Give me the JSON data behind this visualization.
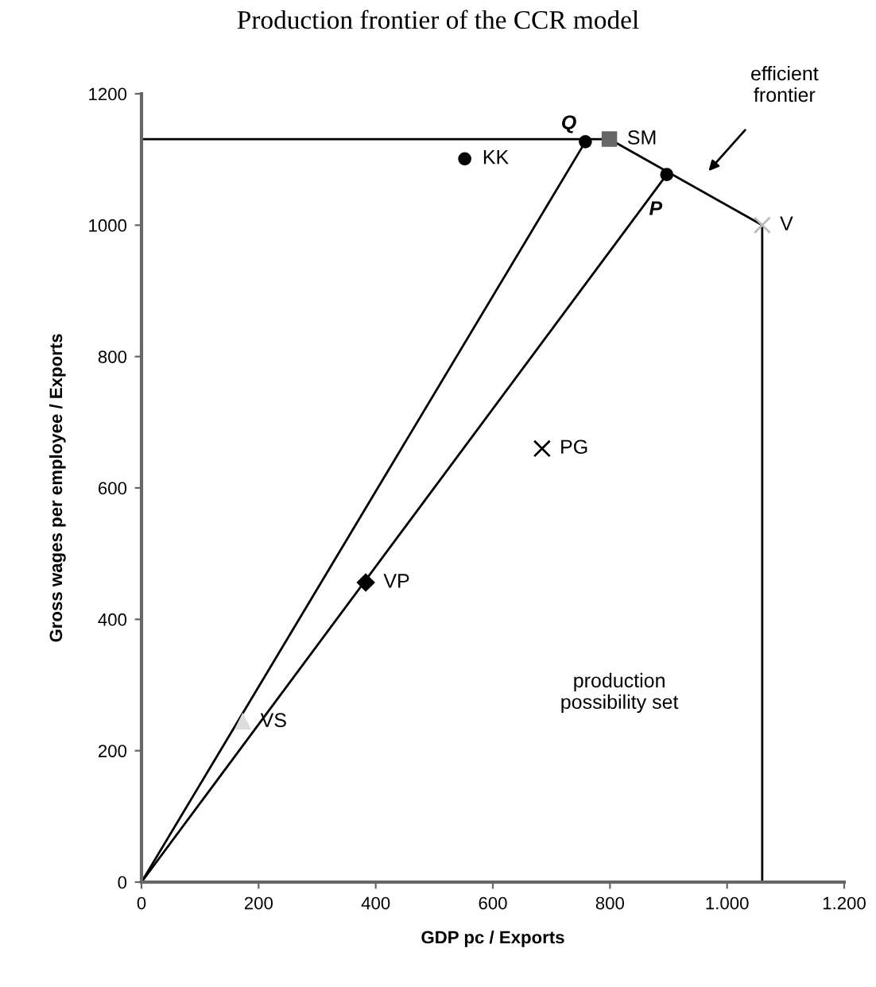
{
  "chart_data": {
    "type": "scatter",
    "title": "Production frontier of the CCR model",
    "xlabel": "GDP pc / Exports",
    "ylabel": "Gross wages per employee / Exports",
    "xlim": [
      0,
      1200
    ],
    "ylim": [
      0,
      1200
    ],
    "xticks": [
      0,
      200,
      400,
      600,
      800,
      {
        "value": 1000,
        "label": "1.000"
      },
      {
        "value": 1200,
        "label": "1.200"
      }
    ],
    "yticks": [
      0,
      200,
      400,
      600,
      800,
      1000,
      1200
    ],
    "grid": false,
    "legend": false,
    "series": [
      {
        "type": "line",
        "color": "#000000",
        "marker": "none",
        "x": [
          0,
          799,
          1060,
          1060
        ],
        "values": [
          1131,
          1131,
          1000,
          0
        ]
      },
      {
        "type": "line",
        "color": "#000000",
        "marker": "none",
        "x": [
          0,
          758
        ],
        "values": [
          0,
          1127
        ]
      },
      {
        "type": "line",
        "color": "#000000",
        "marker": "none",
        "x": [
          0,
          897
        ],
        "values": [
          0,
          1077
        ]
      },
      {
        "name": "Q",
        "color": "#000000",
        "marker": "circle",
        "x": [
          758
        ],
        "values": [
          1127
        ]
      },
      {
        "name": "P",
        "color": "#000000",
        "marker": "circle",
        "x": [
          897
        ],
        "values": [
          1077
        ]
      },
      {
        "name": "KK",
        "color": "#000000",
        "marker": "circle",
        "x": [
          552
        ],
        "values": [
          1101
        ]
      },
      {
        "name": "SM",
        "color": "#666666",
        "marker": "square",
        "x": [
          799
        ],
        "values": [
          1131
        ]
      },
      {
        "name": "V",
        "color": "#bbbbbb",
        "marker": "cross",
        "x": [
          1060
        ],
        "values": [
          1000
        ]
      },
      {
        "name": "PG",
        "color": "#000000",
        "marker": "cross",
        "x": [
          684
        ],
        "values": [
          660
        ]
      },
      {
        "name": "VP",
        "color": "#000000",
        "marker": "diamond",
        "x": [
          383
        ],
        "values": [
          456
        ]
      },
      {
        "name": "VS",
        "color": "#dddddd",
        "marker": "triangle",
        "x": [
          173
        ],
        "values": [
          244
        ]
      }
    ],
    "annotations": [
      "efficient frontier",
      "production possibility set"
    ]
  }
}
